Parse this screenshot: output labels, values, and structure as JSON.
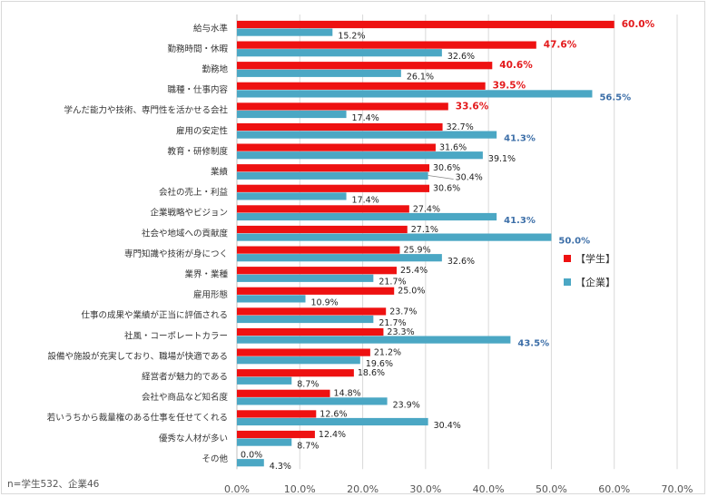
{
  "chart_data": {
    "type": "bar",
    "orientation": "horizontal",
    "categories": [
      "給与水準",
      "勤務時間・休暇",
      "勤務地",
      "職種・仕事内容",
      "学んだ能力や技術、専門性を活かせる会社",
      "雇用の安定性",
      "教育・研修制度",
      "業績",
      "会社の売上・利益",
      "企業戦略やビジョン",
      "社会や地域への貢献度",
      "専門知識や技術が身につく",
      "業界・業種",
      "雇用形態",
      "仕事の成果や業績が正当に評価される",
      "社風・コーポレートカラー",
      "設備や施設が充実しており、職場が快適である",
      "経営者が魅力的である",
      "会社や商品など知名度",
      "若いうちから裁量権のある仕事を任せてくれる",
      "優秀な人材が多い",
      "その他"
    ],
    "series": [
      {
        "name": "【学生】",
        "color": "#ee1111",
        "values": [
          60.0,
          47.6,
          40.6,
          39.5,
          33.6,
          32.7,
          31.6,
          30.6,
          30.6,
          27.4,
          27.1,
          25.9,
          25.4,
          25.0,
          23.7,
          23.3,
          21.2,
          18.6,
          14.8,
          12.6,
          12.4,
          0.0
        ],
        "labels": [
          "60.0%",
          "47.6%",
          "40.6%",
          "39.5%",
          "33.6%",
          "32.7%",
          "31.6%",
          "30.6%",
          "30.6%",
          "27.4%",
          "27.1%",
          "25.9%",
          "25.4%",
          "25.0%",
          "23.7%",
          "23.3%",
          "21.2%",
          "18.6%",
          "14.8%",
          "12.6%",
          "12.4%",
          "0.0%"
        ]
      },
      {
        "name": "【企業】",
        "color": "#4ba7c4",
        "values": [
          15.2,
          32.6,
          26.1,
          56.5,
          17.4,
          41.3,
          39.1,
          30.4,
          17.4,
          41.3,
          50.0,
          32.6,
          21.7,
          10.9,
          21.7,
          43.5,
          19.6,
          8.7,
          23.9,
          30.4,
          8.7,
          4.3
        ],
        "labels": [
          "15.2%",
          "32.6%",
          "26.1%",
          "56.5%",
          "17.4%",
          "41.3%",
          "39.1%",
          "30.4%",
          "17.4%",
          "41.3%",
          "50.0%",
          "32.6%",
          "21.7%",
          "10.9%",
          "21.7%",
          "43.5%",
          "19.6%",
          "8.7%",
          "23.9%",
          "30.4%",
          "8.7%",
          "4.3%"
        ]
      }
    ],
    "xlim": [
      0,
      70
    ],
    "x_ticks": [
      "0.0%",
      "10.0%",
      "20.0%",
      "30.0%",
      "40.0%",
      "50.0%",
      "60.0%",
      "70.0%"
    ],
    "grid": true,
    "legend_position": "right",
    "highlight_red": [
      0,
      1,
      2,
      3,
      4
    ],
    "highlight_blue": [
      3,
      5,
      9,
      10,
      15
    ]
  },
  "note": "n=学生532、企業46"
}
